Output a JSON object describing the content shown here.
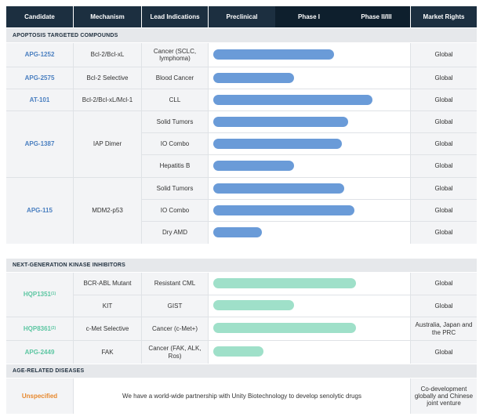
{
  "headers": [
    "Candidate",
    "Mechanism",
    "Lead Indications",
    "Preclinical",
    "Phase I",
    "Phase II/III",
    "Market Rights"
  ],
  "sections": {
    "apoptosis": "APOPTOSIS TARGETED COMPOUNDS",
    "kinase": "NEXT-GENERATION KINASE INHIBITORS",
    "age": "AGE-RELATED DISEASES"
  },
  "apoptosis_rows": [
    {
      "indication": "Cancer (SCLC, lymphoma)",
      "progress": 0.6,
      "rights": "Global"
    },
    {
      "indication": "Blood Cancer",
      "progress": 0.4,
      "rights": "Global"
    },
    {
      "indication": "CLL",
      "progress": 0.79,
      "rights": "Global"
    },
    {
      "indication": "Solid Tumors",
      "progress": 0.67,
      "rights": "Global"
    },
    {
      "indication": "IO Combo",
      "progress": 0.64,
      "rights": "Global"
    },
    {
      "indication": "Hepatitis B",
      "progress": 0.4,
      "rights": "Global"
    },
    {
      "indication": "Solid Tumors",
      "progress": 0.65,
      "rights": "Global"
    },
    {
      "indication": "IO Combo",
      "progress": 0.7,
      "rights": "Global"
    },
    {
      "indication": "Dry AMD",
      "progress": 0.24,
      "rights": "Global"
    }
  ],
  "apoptosis_candidates": [
    {
      "name": "APG-1252",
      "mechanism": "Bcl-2/Bcl-xL"
    },
    {
      "name": "APG-2575",
      "mechanism": "Bcl-2 Selective"
    },
    {
      "name": "AT-101",
      "mechanism": "Bcl-2/Bcl-xL/Mcl-1"
    },
    {
      "name": "APG-1387",
      "mechanism": "IAP Dimer"
    },
    {
      "name": "APG-115",
      "mechanism": "MDM2-p53"
    }
  ],
  "kinase_rows": [
    {
      "candidate": "HQP1351",
      "sup": "(1)",
      "mechanism": "BCR-ABL Mutant",
      "indication": "Resistant CML",
      "progress": 0.71,
      "rights": "Global"
    },
    {
      "candidate": "",
      "sup": "",
      "mechanism": "KIT",
      "indication": "GIST",
      "progress": 0.4,
      "rights": "Global"
    },
    {
      "candidate": "HQP8361",
      "sup": "(2)",
      "mechanism": "c-Met Selective",
      "indication": "Cancer (c-Met+)",
      "progress": 0.71,
      "rights": "Australia, Japan and the PRC"
    },
    {
      "candidate": "APG-2449",
      "sup": "",
      "mechanism": "FAK",
      "indication": "Cancer (FAK, ALK, Ros)",
      "progress": 0.25,
      "rights": "Global"
    }
  ],
  "age_row": {
    "candidate": "Unspecified",
    "description": "We have a world-wide partnership with Unity Biotechnology to develop senolytic drugs",
    "rights": "Co-development globally and Chinese joint venture"
  },
  "colors": {
    "header": "#1c2f40",
    "header_phase": "#0e1f2d",
    "bar_apoptosis": "#6a9bd8",
    "bar_kinase": "#9fe0c9",
    "candidate_blue": "#4a7fc0",
    "candidate_green": "#5cc6a2",
    "candidate_orange": "#e7882d"
  }
}
